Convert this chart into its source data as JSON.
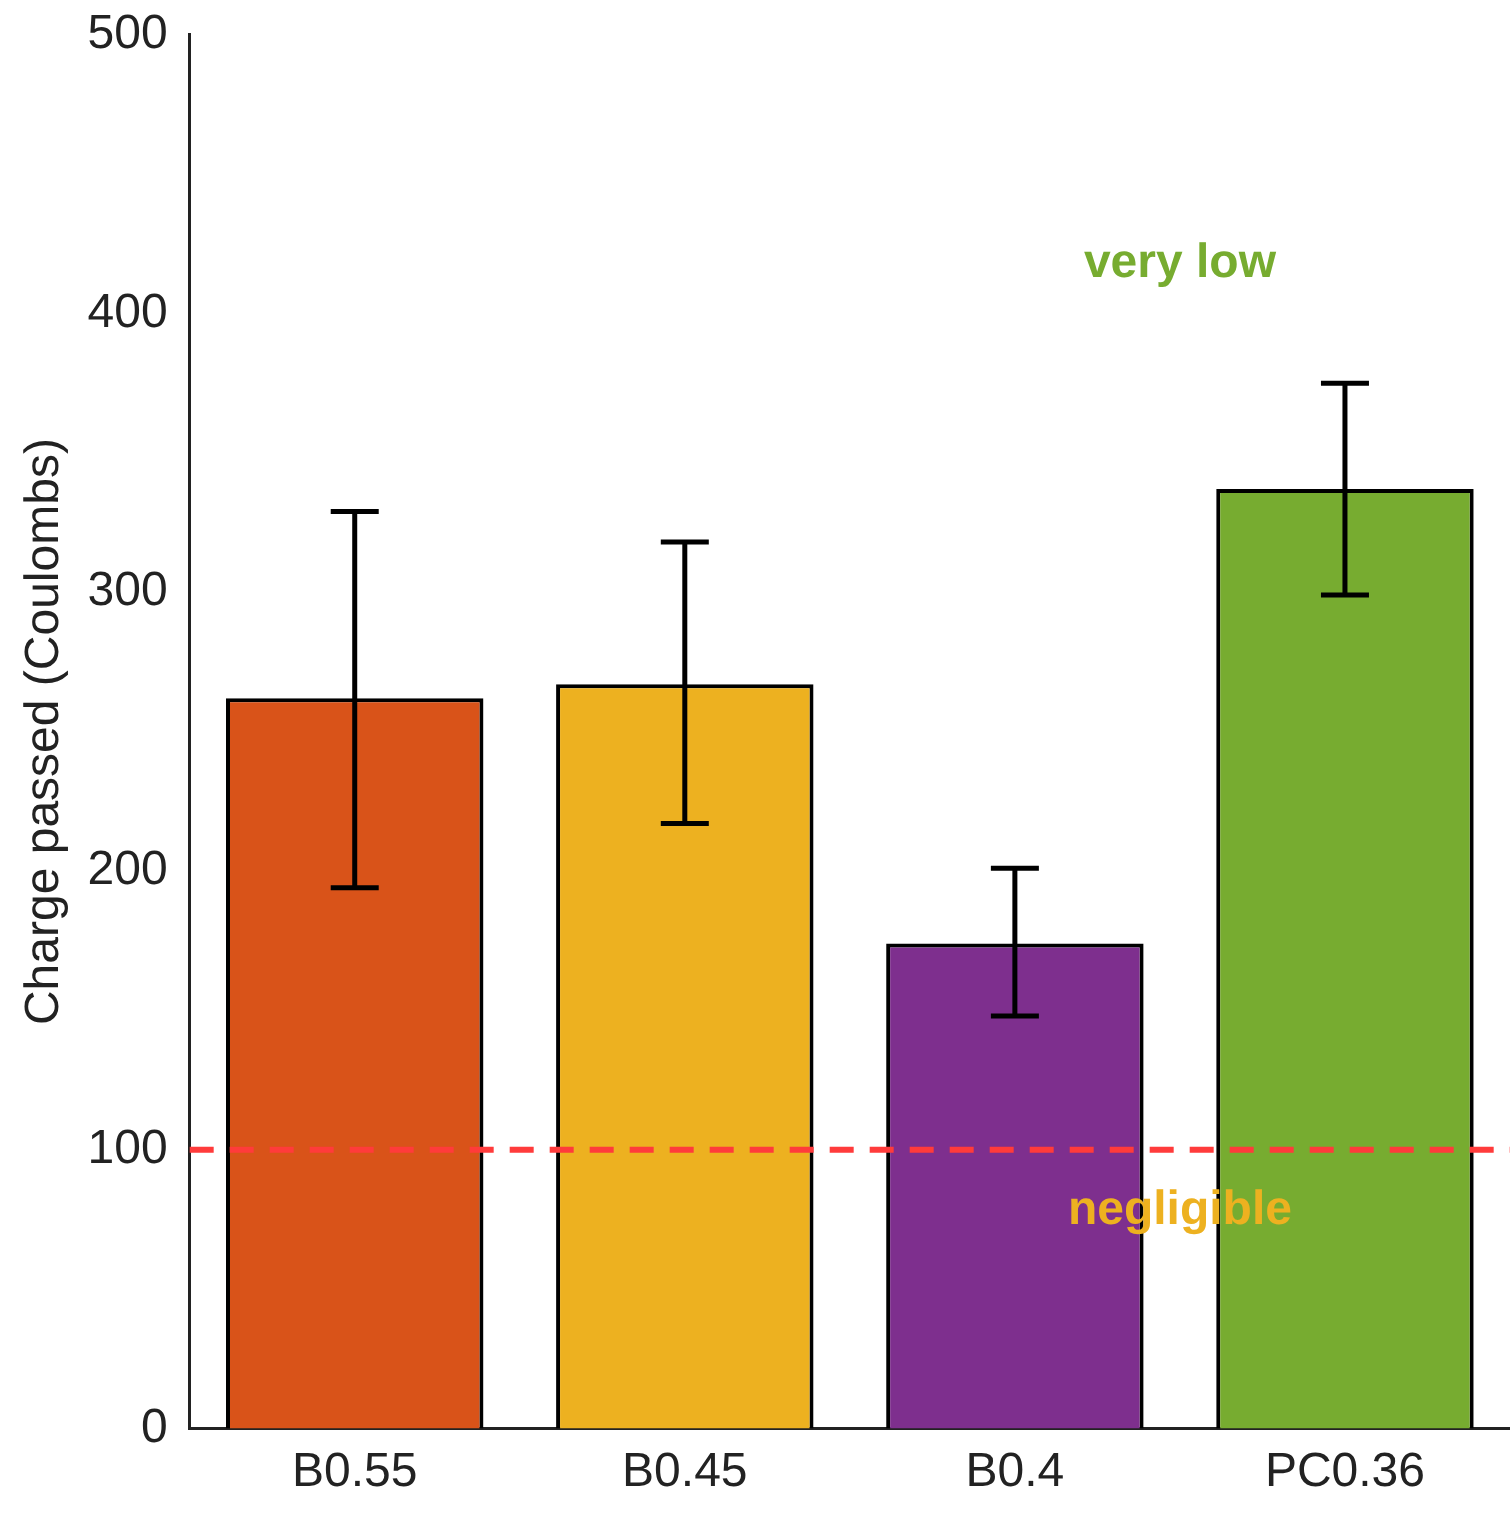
{
  "chart_data": {
    "type": "bar",
    "ylabel": "Charge passed (Coulombs)",
    "categories": [
      "B0.55",
      "B0.45",
      "B0.4",
      "PC0.36"
    ],
    "values": [
      262,
      267,
      174,
      337
    ],
    "colors": [
      "#d95319",
      "#edb120",
      "#7e2f8e",
      "#77ac30"
    ],
    "errors": [
      [
        194,
        329
      ],
      [
        217,
        318
      ],
      [
        148,
        201
      ],
      [
        299,
        375
      ]
    ],
    "ylim": [
      0,
      500
    ],
    "yticks": [
      0,
      100,
      200,
      300,
      400,
      500
    ],
    "grid": false,
    "legend": false,
    "ref_lines": [
      {
        "axis": "y",
        "value": 100,
        "color": "#ff3b3b",
        "line_style": "dashed"
      }
    ],
    "annotations": [
      "very low",
      "negligible"
    ]
  }
}
